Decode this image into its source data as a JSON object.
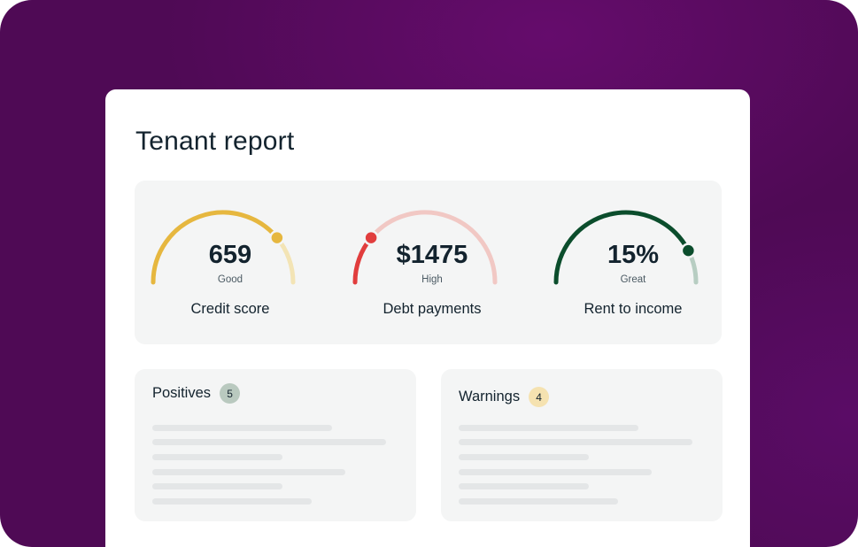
{
  "report": {
    "title": "Tenant report"
  },
  "gauges": [
    {
      "value": "659",
      "rating": "Good",
      "label": "Credit score",
      "level": 0.78,
      "color": "#e6b73f",
      "track": "#f3e4b5"
    },
    {
      "value": "$1475",
      "rating": "High",
      "label": "Debt payments",
      "level": 0.22,
      "color": "#e13d3d",
      "track": "#f1c8c4"
    },
    {
      "value": "15%",
      "rating": "Great",
      "label": "Rent to income",
      "level": 0.85,
      "color": "#0b4d2c",
      "track": "#b7cdc2"
    }
  ],
  "positives": {
    "title": "Positives",
    "count": "5",
    "badge_color": "#b9c9bf"
  },
  "warnings": {
    "title": "Warnings",
    "count": "4",
    "badge_color": "#f5e2b0"
  },
  "colors": {
    "background": "#4f0a55",
    "card": "#ffffff",
    "panel": "#f4f5f5",
    "text": "#13232e",
    "placeholder_line": "#e4e6e7"
  }
}
